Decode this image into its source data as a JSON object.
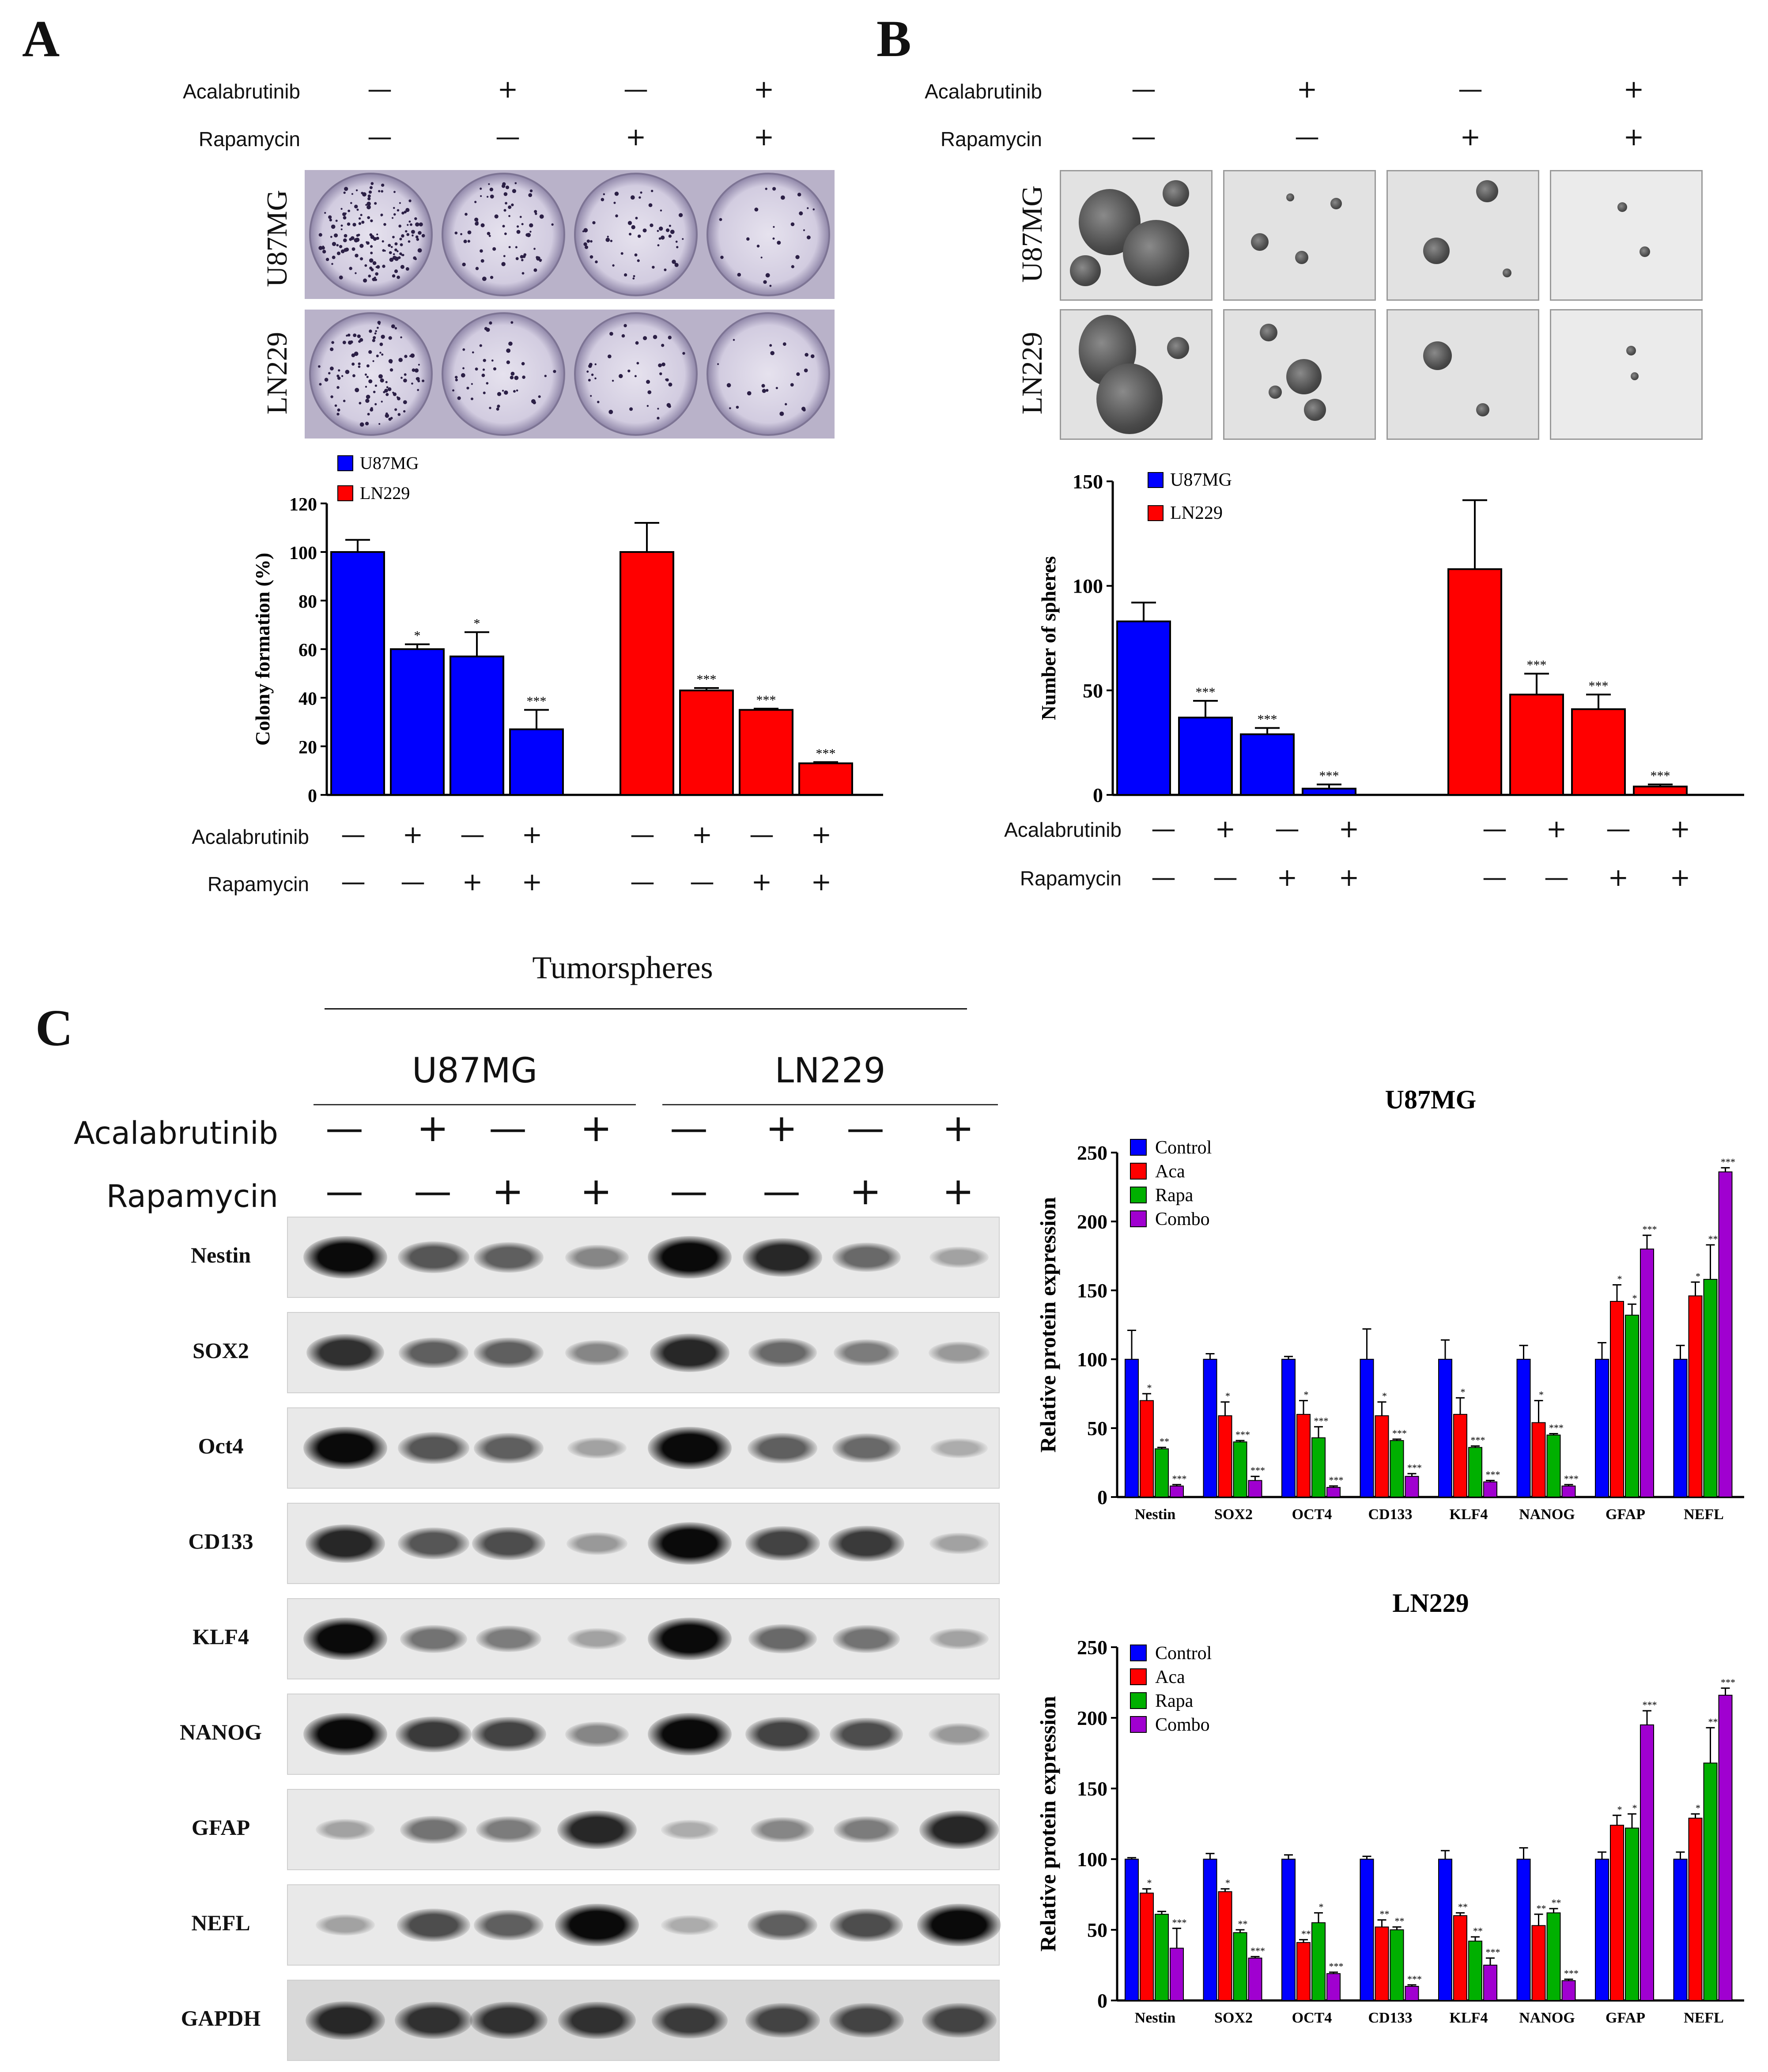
{
  "panel_labels": {
    "a": "A",
    "b": "B",
    "c": "C"
  },
  "treatments": {
    "acalabrutinib": "Acalabrutinib",
    "rapamycin": "Rapamycin",
    "acala_signs": [
      "—",
      "+",
      "—",
      "+"
    ],
    "rapa_signs": [
      "—",
      "—",
      "+",
      "+"
    ],
    "acala_signs_8": [
      "—",
      "+",
      "—",
      "+",
      "—",
      "+",
      "—",
      "+"
    ],
    "rapa_signs_8": [
      "—",
      "—",
      "+",
      "+",
      "—",
      "—",
      "+",
      "+"
    ]
  },
  "cell_lines": {
    "u87": "U87MG",
    "ln229": "LN229"
  },
  "tumorspheres_title": "Tumorspheres",
  "blot_rows": [
    "Nestin",
    "SOX2",
    "Oct4",
    "CD133",
    "KLF4",
    "NANOG",
    "GFAP",
    "NEFL",
    "GAPDH"
  ],
  "chart_data": [
    {
      "id": "colony",
      "type": "bar",
      "ylabel": "Colony formation (%)",
      "ylim": [
        0,
        120
      ],
      "yticks": [
        0,
        20,
        40,
        60,
        80,
        100,
        120
      ],
      "legend": [
        "U87MG",
        "LN229"
      ],
      "colors": [
        "#0000ff",
        "#ff0000"
      ],
      "series": [
        {
          "name": "U87MG",
          "values": [
            100,
            60,
            57,
            27
          ],
          "errors": [
            5,
            2,
            10,
            8
          ],
          "sig": [
            "",
            "*",
            "*",
            "***"
          ]
        },
        {
          "name": "LN229",
          "values": [
            100,
            43,
            35,
            13
          ],
          "errors": [
            12,
            1,
            0.5,
            0.5
          ],
          "sig": [
            "",
            "***",
            "***",
            "***"
          ]
        }
      ]
    },
    {
      "id": "spheres",
      "type": "bar",
      "ylabel": "Number of spheres",
      "ylim": [
        0,
        150
      ],
      "yticks": [
        0,
        50,
        100,
        150
      ],
      "legend": [
        "U87MG",
        "LN229"
      ],
      "colors": [
        "#0000ff",
        "#ff0000"
      ],
      "series": [
        {
          "name": "U87MG",
          "values": [
            83,
            37,
            29,
            3
          ],
          "errors": [
            9,
            8,
            3,
            2
          ],
          "sig": [
            "",
            "***",
            "***",
            "***"
          ]
        },
        {
          "name": "LN229",
          "values": [
            108,
            48,
            41,
            4
          ],
          "errors": [
            33,
            10,
            7,
            1
          ],
          "sig": [
            "",
            "***",
            "***",
            "***"
          ]
        }
      ]
    },
    {
      "id": "u87-protein",
      "type": "bar",
      "title": "U87MG",
      "ylabel": "Relative protein expression",
      "ylim": [
        0,
        250
      ],
      "yticks": [
        0,
        50,
        100,
        150,
        200,
        250
      ],
      "categories": [
        "Nestin",
        "SOX2",
        "OCT4",
        "CD133",
        "KLF4",
        "NANOG",
        "GFAP",
        "NEFL"
      ],
      "colors": [
        "#0000ff",
        "#ff0000",
        "#00b000",
        "#a000d0"
      ],
      "series": [
        {
          "name": "Control",
          "values": [
            100,
            100,
            100,
            100,
            100,
            100,
            100,
            100
          ],
          "errors": [
            21,
            4,
            2,
            22,
            14,
            10,
            12,
            10
          ],
          "sig": [
            "",
            "",
            "",
            "",
            "",
            "",
            "",
            ""
          ]
        },
        {
          "name": "Aca",
          "values": [
            70,
            59,
            60,
            59,
            60,
            54,
            142,
            146
          ],
          "errors": [
            5,
            10,
            10,
            10,
            12,
            16,
            12,
            10
          ],
          "sig": [
            "*",
            "*",
            "*",
            "*",
            "*",
            "*",
            "*",
            "*"
          ]
        },
        {
          "name": "Rapa",
          "values": [
            35,
            40,
            43,
            41,
            36,
            45,
            132,
            158
          ],
          "errors": [
            1,
            1,
            8,
            1,
            1,
            1,
            8,
            25
          ],
          "sig": [
            "**",
            "***",
            "***",
            "***",
            "***",
            "***",
            "*",
            "**"
          ]
        },
        {
          "name": "Combo",
          "values": [
            8,
            12,
            7,
            15,
            11,
            8,
            180,
            236
          ],
          "errors": [
            1,
            3,
            1,
            2,
            1,
            1,
            10,
            3
          ],
          "sig": [
            "***",
            "***",
            "***",
            "***",
            "***",
            "***",
            "***",
            "***"
          ]
        }
      ]
    },
    {
      "id": "ln229-protein",
      "type": "bar",
      "title": "LN229",
      "ylabel": "Relative protein expression",
      "ylim": [
        0,
        250
      ],
      "yticks": [
        0,
        50,
        100,
        150,
        200,
        250
      ],
      "categories": [
        "Nestin",
        "SOX2",
        "OCT4",
        "CD133",
        "KLF4",
        "NANOG",
        "GFAP",
        "NEFL"
      ],
      "colors": [
        "#0000ff",
        "#ff0000",
        "#00b000",
        "#a000d0"
      ],
      "series": [
        {
          "name": "Control",
          "values": [
            100,
            100,
            100,
            100,
            100,
            100,
            100,
            100
          ],
          "errors": [
            1,
            4,
            3,
            2,
            6,
            8,
            5,
            5
          ],
          "sig": [
            "",
            "",
            "",
            "",
            "",
            "",
            "",
            ""
          ]
        },
        {
          "name": "Aca",
          "values": [
            76,
            77,
            41,
            52,
            60,
            53,
            124,
            129
          ],
          "errors": [
            3,
            2,
            2,
            5,
            2,
            8,
            7,
            3
          ],
          "sig": [
            "*",
            "*",
            "**",
            "**",
            "**",
            "**",
            "*",
            "*"
          ]
        },
        {
          "name": "Rapa",
          "values": [
            61,
            48,
            55,
            50,
            42,
            62,
            122,
            168
          ],
          "errors": [
            2,
            2,
            7,
            2,
            3,
            3,
            10,
            25
          ],
          "sig": [
            "",
            "**",
            "*",
            "**",
            "**",
            "**",
            "*",
            "**"
          ]
        },
        {
          "name": "Combo",
          "values": [
            37,
            30,
            19,
            10,
            25,
            14,
            195,
            216
          ],
          "errors": [
            14,
            1,
            1,
            1,
            5,
            1,
            10,
            5
          ],
          "sig": [
            "***",
            "***",
            "***",
            "***",
            "***",
            "***",
            "***",
            "***"
          ]
        }
      ]
    }
  ]
}
